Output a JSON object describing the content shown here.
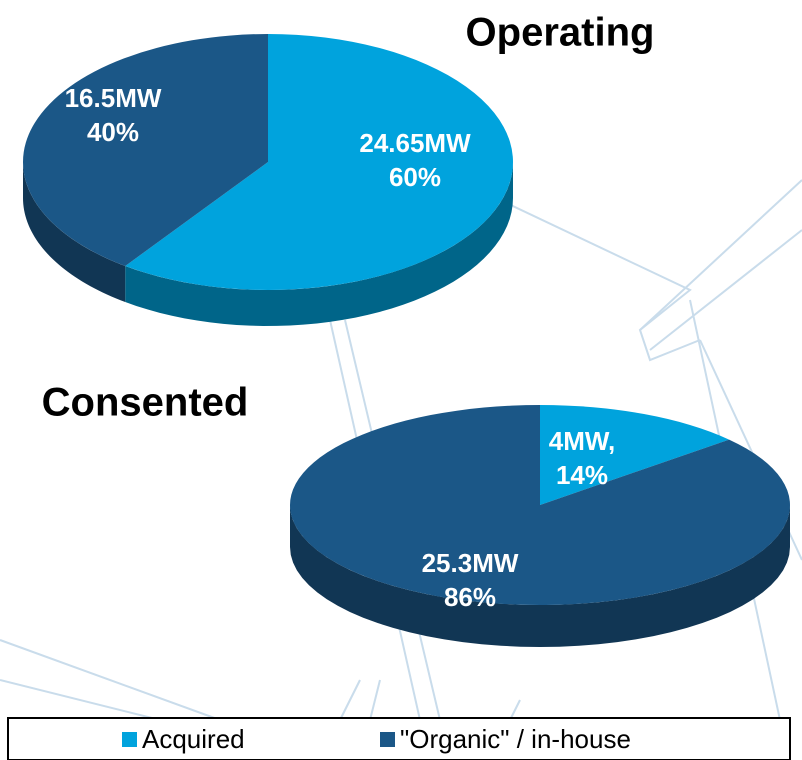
{
  "chart_data": [
    {
      "type": "pie3d",
      "title": "Operating",
      "values": [
        24.65,
        16.5
      ],
      "value_labels": [
        "24.65MW",
        "16.5MW"
      ],
      "percents": [
        60,
        40
      ],
      "percent_labels": [
        "60%",
        "40%"
      ]
    },
    {
      "type": "pie3d",
      "title": "Consented",
      "values": [
        4,
        25.3
      ],
      "value_labels": [
        "4MW,",
        "25.3MW"
      ],
      "percents": [
        14,
        86
      ],
      "percent_labels": [
        "14%",
        "86%"
      ]
    }
  ],
  "legend": {
    "items": [
      "Acquired",
      "\"Organic\" / in-house"
    ],
    "colors": [
      "#00a3dd",
      "#1b5787"
    ]
  }
}
